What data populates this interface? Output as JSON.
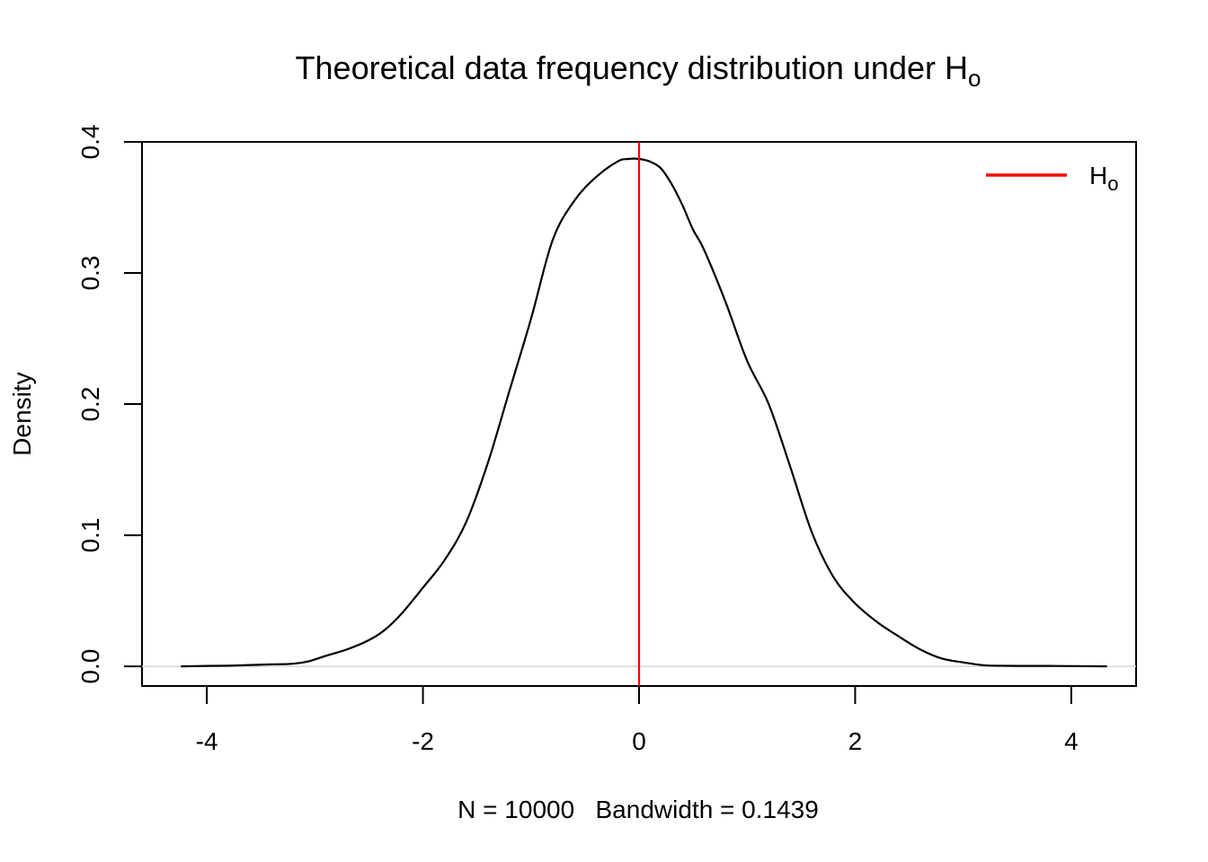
{
  "chart_data": {
    "type": "line",
    "title": "Theoretical data frequency distribution under H",
    "title_subscript": "o",
    "xlabel": "N = 10000   Bandwidth = 0.1439",
    "ylabel": "Density",
    "xlim": [
      -4.6,
      4.6
    ],
    "ylim": [
      -0.015,
      0.4
    ],
    "x_ticks": [
      -4,
      -2,
      0,
      2,
      4
    ],
    "x_tick_labels": [
      "-4",
      "-2",
      "0",
      "2",
      "4"
    ],
    "y_ticks": [
      0.0,
      0.1,
      0.2,
      0.3,
      0.4
    ],
    "y_tick_labels": [
      "0.0",
      "0.1",
      "0.2",
      "0.3",
      "0.4"
    ],
    "grid": false,
    "zero_line": true,
    "legend": {
      "placement": "top-right",
      "entries": [
        {
          "label": "H",
          "subscript": "o",
          "color": "#ff0000"
        }
      ]
    },
    "vline": {
      "x": 0,
      "color": "#ff0000"
    },
    "series": [
      {
        "color": "#000000",
        "x": [
          -4.24,
          -4.0,
          -3.8,
          -3.6,
          -3.4,
          -3.2,
          -3.05,
          -2.9,
          -2.7,
          -2.5,
          -2.35,
          -2.2,
          -2.0,
          -1.8,
          -1.6,
          -1.4,
          -1.2,
          -1.0,
          -0.8,
          -0.6,
          -0.4,
          -0.2,
          -0.1,
          0.0,
          0.1,
          0.2,
          0.3,
          0.4,
          0.5,
          0.6,
          0.8,
          1.0,
          1.2,
          1.4,
          1.6,
          1.8,
          2.0,
          2.2,
          2.4,
          2.6,
          2.8,
          3.0,
          3.2,
          3.4,
          3.6,
          3.8,
          4.0,
          4.33
        ],
        "values": [
          0.0,
          0.0003,
          0.0005,
          0.001,
          0.0015,
          0.002,
          0.004,
          0.008,
          0.013,
          0.02,
          0.028,
          0.04,
          0.06,
          0.081,
          0.11,
          0.155,
          0.21,
          0.265,
          0.325,
          0.355,
          0.373,
          0.385,
          0.387,
          0.387,
          0.385,
          0.38,
          0.368,
          0.352,
          0.333,
          0.318,
          0.278,
          0.233,
          0.2,
          0.152,
          0.102,
          0.068,
          0.048,
          0.034,
          0.023,
          0.013,
          0.006,
          0.003,
          0.0008,
          0.0004,
          0.0003,
          0.0003,
          0.0002,
          0.0
        ]
      }
    ]
  }
}
